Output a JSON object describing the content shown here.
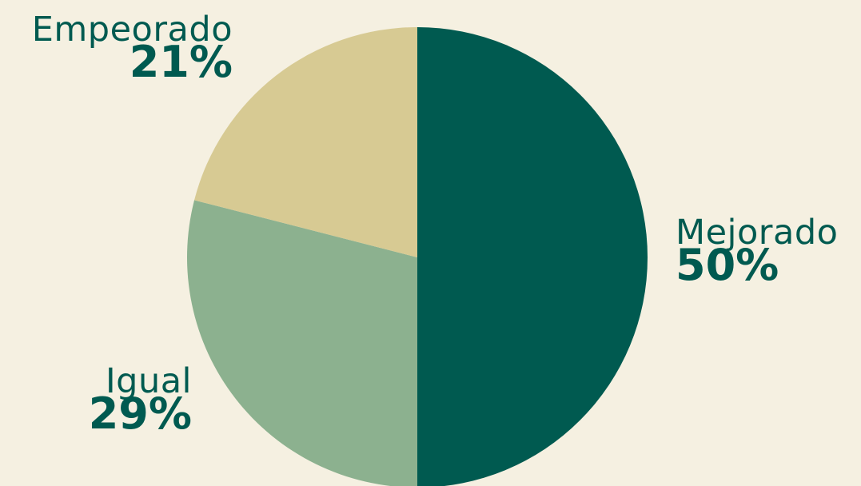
{
  "chart_data": {
    "type": "pie",
    "title": "",
    "slices": [
      {
        "label": "Mejorado",
        "value": 50,
        "value_label": "50%",
        "color": "#005a50"
      },
      {
        "label": "Igual",
        "value": 29,
        "value_label": "29%",
        "color": "#8cb18f"
      },
      {
        "label": "Empeorado",
        "value": 21,
        "value_label": "21%",
        "color": "#d7ca93"
      }
    ],
    "start_angle": "12 o'clock",
    "direction": "clockwise",
    "label_color": "#005a50",
    "background": "#f5f0e1"
  }
}
